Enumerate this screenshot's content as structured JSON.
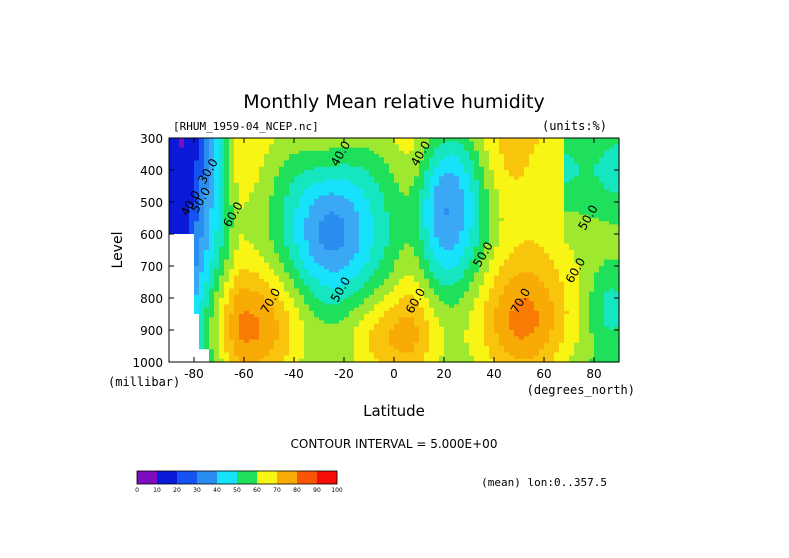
{
  "chart_data": {
    "type": "heatmap",
    "title": "Monthly Mean relative humidity",
    "dataset_label": "[RHUM_1959-04_NCEP.nc]",
    "units_label": "(units:%)",
    "xlabel": "Latitude",
    "x_units": "(degrees_north)",
    "ylabel": "Level",
    "y_units": "(millibar)",
    "xlim": [
      -90,
      90
    ],
    "ylim": [
      1000,
      300
    ],
    "x_ticks": [
      "-80",
      "-60",
      "-40",
      "-20",
      "0",
      "20",
      "40",
      "60",
      "80"
    ],
    "x_tick_values": [
      -80,
      -60,
      -40,
      -20,
      0,
      20,
      40,
      60,
      80
    ],
    "y_ticks": [
      "300",
      "400",
      "500",
      "600",
      "700",
      "800",
      "900",
      "1000"
    ],
    "y_tick_values": [
      300,
      400,
      500,
      600,
      700,
      800,
      900,
      1000
    ],
    "contour_interval_text": "CONTOUR INTERVAL = 5.000E+00",
    "mean_text": "(mean) lon:0..357.5",
    "contour_labels": [
      {
        "text": "30.0",
        "lat": -73,
        "level": 410
      },
      {
        "text": "40.0",
        "lat": -80,
        "level": 510
      },
      {
        "text": "50.0",
        "lat": -76,
        "level": 500
      },
      {
        "text": "60.0",
        "lat": -63,
        "level": 545
      },
      {
        "text": "40.0",
        "lat": -20,
        "level": 355
      },
      {
        "text": "40.0",
        "lat": 12,
        "level": 355
      },
      {
        "text": "50.0",
        "lat": -20,
        "level": 780
      },
      {
        "text": "50.0",
        "lat": 37,
        "level": 670
      },
      {
        "text": "60.0",
        "lat": 10,
        "level": 815
      },
      {
        "text": "70.0",
        "lat": -48,
        "level": 815
      },
      {
        "text": "70.0",
        "lat": 52,
        "level": 815
      },
      {
        "text": "60.0",
        "lat": 74,
        "level": 720
      },
      {
        "text": "50.0",
        "lat": 79,
        "level": 555
      }
    ],
    "colorbar": {
      "labels": [
        "0",
        "10",
        "20",
        "30",
        "40",
        "50",
        "60",
        "70",
        "80",
        "90",
        "100"
      ],
      "colors": [
        "#7d0dbf",
        "#0a1ad8",
        "#1453f2",
        "#2a8ef0",
        "#16e3fb",
        "#1fe05a",
        "#f8f514",
        "#f8aa05",
        "#fa5506",
        "#f50e05"
      ]
    },
    "fill_levels": [
      {
        "threshold": 20,
        "color": "#0a1ad8"
      },
      {
        "threshold": 30,
        "color": "#1453f2"
      },
      {
        "threshold": 35,
        "color": "#2a8ef0"
      },
      {
        "threshold": 40,
        "color": "#3aa8f5"
      },
      {
        "threshold": 45,
        "color": "#16e3fb"
      },
      {
        "threshold": 50,
        "color": "#15e6c0"
      },
      {
        "threshold": 55,
        "color": "#1fe05a"
      },
      {
        "threshold": 60,
        "color": "#9fe830"
      },
      {
        "threshold": 65,
        "color": "#f8f514"
      },
      {
        "threshold": 70,
        "color": "#f8c40c"
      },
      {
        "threshold": 75,
        "color": "#f8aa05"
      },
      {
        "threshold": 80,
        "color": "#fa7a06"
      },
      {
        "threshold": 85,
        "color": "#fa5506"
      },
      {
        "threshold": 90,
        "color": "#f50e05"
      }
    ],
    "missing_color": "#ffffff",
    "below_min_color": "#7d0dbf"
  }
}
